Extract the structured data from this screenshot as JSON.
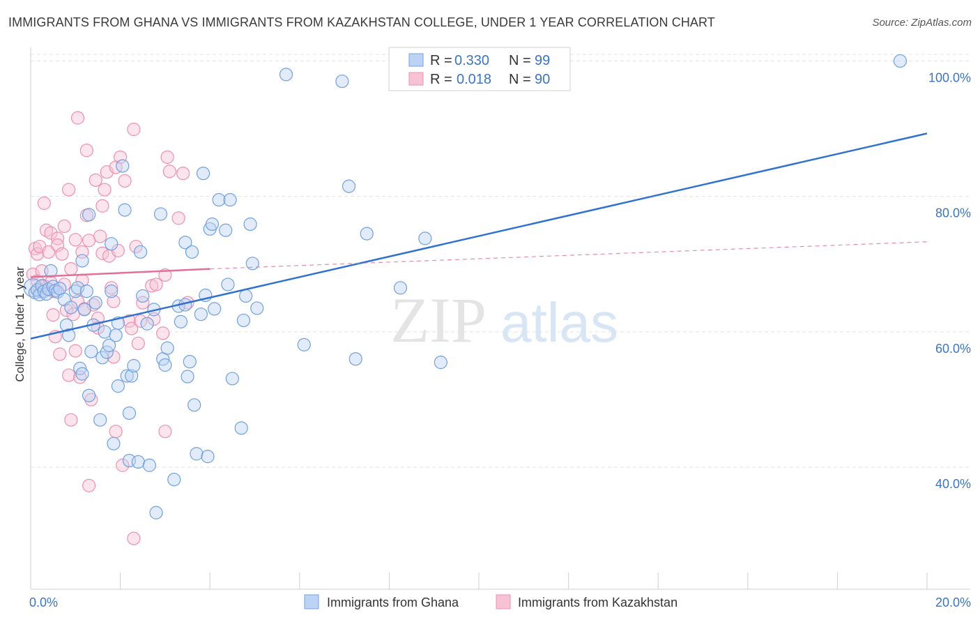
{
  "header": {
    "title": "IMMIGRANTS FROM GHANA VS IMMIGRANTS FROM KAZAKHSTAN COLLEGE, UNDER 1 YEAR CORRELATION CHART",
    "source": "Source: ZipAtlas.com"
  },
  "watermark": {
    "part1": "ZIP",
    "part2": "atlas"
  },
  "colors": {
    "ghana": "#6fa0e0",
    "ghana_fill": "#bcd3f3",
    "ghana_line": "#2f72d0",
    "kazakhstan": "#ee8fb0",
    "kazakhstan_fill": "#f7c3d4",
    "kazakhstan_line": "#e0709a",
    "tick_text": "#3a74c9",
    "grid": "#dde3ec"
  },
  "legend": {
    "ghana": {
      "r_label": "R = ",
      "r_value": "0.330",
      "n_label": "N = ",
      "n_value": "99"
    },
    "kazakhstan": {
      "r_label": "R = ",
      "r_value": "0.018",
      "n_label": "N = ",
      "n_value": "90"
    }
  },
  "chart_data": {
    "type": "scatter",
    "title": "IMMIGRANTS FROM GHANA VS IMMIGRANTS FROM KAZAKHSTAN COLLEGE, UNDER 1 YEAR CORRELATION CHART",
    "xlabel": "",
    "ylabel": "College, Under 1 year",
    "xlim": [
      0,
      20
    ],
    "ylim": [
      22,
      102
    ],
    "x_tick_labels": [
      "0.0%",
      "20.0%"
    ],
    "y_ticks": [
      40,
      60,
      80,
      100
    ],
    "y_tick_labels": [
      "40.0%",
      "60.0%",
      "80.0%",
      "100.0%"
    ],
    "grid": true,
    "legend_position": "top-center",
    "series": [
      {
        "name": "Immigrants from Ghana",
        "r": 0.33,
        "n": 99,
        "trend": {
          "x": [
            0,
            20
          ],
          "y": [
            59.0,
            89.3
          ],
          "style": "solid"
        },
        "points": [
          [
            0.05,
            66.5
          ],
          [
            0.1,
            65.8
          ],
          [
            0.15,
            66.2
          ],
          [
            0.2,
            65.5
          ],
          [
            0.25,
            66.8
          ],
          [
            0.3,
            66.0
          ],
          [
            0.35,
            65.6
          ],
          [
            0.4,
            66.3
          ],
          [
            0.45,
            69.0
          ],
          [
            0.5,
            66.7
          ],
          [
            0.55,
            66.1
          ],
          [
            0.6,
            65.9
          ],
          [
            0.65,
            66.4
          ],
          [
            0.75,
            64.8
          ],
          [
            0.8,
            61.0
          ],
          [
            0.85,
            59.5
          ],
          [
            1.0,
            66.0
          ],
          [
            1.05,
            66.5
          ],
          [
            0.9,
            63.6
          ],
          [
            1.1,
            54.6
          ],
          [
            1.15,
            53.8
          ],
          [
            1.15,
            70.5
          ],
          [
            1.2,
            63.3
          ],
          [
            1.25,
            66.0
          ],
          [
            1.3,
            77.3
          ],
          [
            1.3,
            50.6
          ],
          [
            1.35,
            57.1
          ],
          [
            1.4,
            61.0
          ],
          [
            1.45,
            64.3
          ],
          [
            1.55,
            47.0
          ],
          [
            1.6,
            56.2
          ],
          [
            1.65,
            60.0
          ],
          [
            1.7,
            57.0
          ],
          [
            1.75,
            58.0
          ],
          [
            1.8,
            66.0
          ],
          [
            1.8,
            73.0
          ],
          [
            1.85,
            43.5
          ],
          [
            1.9,
            59.5
          ],
          [
            1.95,
            61.3
          ],
          [
            1.95,
            52.0
          ],
          [
            2.05,
            84.5
          ],
          [
            2.1,
            78.0
          ],
          [
            2.15,
            53.5
          ],
          [
            2.2,
            48.0
          ],
          [
            2.2,
            41.0
          ],
          [
            2.25,
            53.5
          ],
          [
            2.3,
            55.0
          ],
          [
            2.4,
            40.8
          ],
          [
            2.45,
            71.8
          ],
          [
            2.5,
            65.3
          ],
          [
            2.6,
            61.2
          ],
          [
            2.65,
            40.3
          ],
          [
            2.75,
            63.3
          ],
          [
            2.8,
            33.3
          ],
          [
            2.9,
            77.4
          ],
          [
            2.95,
            56.0
          ],
          [
            3.0,
            55.1
          ],
          [
            3.05,
            57.6
          ],
          [
            3.2,
            38.2
          ],
          [
            3.3,
            63.8
          ],
          [
            3.35,
            61.5
          ],
          [
            3.45,
            64.0
          ],
          [
            3.45,
            73.2
          ],
          [
            3.5,
            53.4
          ],
          [
            3.55,
            55.6
          ],
          [
            3.6,
            71.8
          ],
          [
            3.65,
            49.2
          ],
          [
            3.7,
            42.0
          ],
          [
            3.8,
            62.6
          ],
          [
            3.85,
            83.4
          ],
          [
            3.9,
            65.4
          ],
          [
            3.95,
            41.6
          ],
          [
            4.0,
            75.2
          ],
          [
            4.05,
            75.9
          ],
          [
            4.1,
            63.4
          ],
          [
            4.2,
            79.5
          ],
          [
            4.35,
            75.0
          ],
          [
            4.4,
            67.0
          ],
          [
            4.45,
            79.5
          ],
          [
            4.5,
            53.1
          ],
          [
            4.7,
            45.8
          ],
          [
            4.75,
            61.7
          ],
          [
            4.8,
            65.3
          ],
          [
            4.9,
            75.9
          ],
          [
            4.95,
            70.1
          ],
          [
            5.05,
            63.5
          ],
          [
            5.7,
            98.0
          ],
          [
            6.1,
            58.1
          ],
          [
            6.95,
            97.0
          ],
          [
            7.1,
            81.5
          ],
          [
            7.25,
            56.0
          ],
          [
            7.5,
            74.5
          ],
          [
            8.25,
            66.5
          ],
          [
            8.8,
            73.8
          ],
          [
            9.15,
            55.5
          ],
          [
            19.4,
            100.0
          ]
        ]
      },
      {
        "name": "Immigrants from Kazakhstan",
        "r": 0.018,
        "n": 90,
        "trend": {
          "x": [
            0,
            4.0
          ],
          "y": [
            68.1,
            69.3
          ],
          "style": "solid",
          "extension": {
            "x": [
              4.0,
              20
            ],
            "y": [
              69.3,
              73.3
            ],
            "style": "dashed"
          }
        },
        "points": [
          [
            0.05,
            68.5
          ],
          [
            0.1,
            72.3
          ],
          [
            0.15,
            71.5
          ],
          [
            0.15,
            67.5
          ],
          [
            0.2,
            66.0
          ],
          [
            0.2,
            72.6
          ],
          [
            0.25,
            69.0
          ],
          [
            0.3,
            79.0
          ],
          [
            0.3,
            66.8
          ],
          [
            0.35,
            75.0
          ],
          [
            0.4,
            71.8
          ],
          [
            0.45,
            67.3
          ],
          [
            0.45,
            74.6
          ],
          [
            0.5,
            62.5
          ],
          [
            0.55,
            59.3
          ],
          [
            0.5,
            66.0
          ],
          [
            0.6,
            73.8
          ],
          [
            0.6,
            72.8
          ],
          [
            0.65,
            56.7
          ],
          [
            0.7,
            71.5
          ],
          [
            0.75,
            75.6
          ],
          [
            0.75,
            67.0
          ],
          [
            0.8,
            63.2
          ],
          [
            0.85,
            53.6
          ],
          [
            0.85,
            81.0
          ],
          [
            0.9,
            47.0
          ],
          [
            0.9,
            69.3
          ],
          [
            0.95,
            62.6
          ],
          [
            1.0,
            57.2
          ],
          [
            1.0,
            73.6
          ],
          [
            1.05,
            91.6
          ],
          [
            1.05,
            64.5
          ],
          [
            1.1,
            53.3
          ],
          [
            1.15,
            67.6
          ],
          [
            1.15,
            71.8
          ],
          [
            1.2,
            63.4
          ],
          [
            1.25,
            86.8
          ],
          [
            1.25,
            77.2
          ],
          [
            1.3,
            37.3
          ],
          [
            1.3,
            73.5
          ],
          [
            1.35,
            50.0
          ],
          [
            1.4,
            64.0
          ],
          [
            1.45,
            82.4
          ],
          [
            1.5,
            62.0
          ],
          [
            1.5,
            60.6
          ],
          [
            1.55,
            74.1
          ],
          [
            1.6,
            71.6
          ],
          [
            1.6,
            78.6
          ],
          [
            1.65,
            81.0
          ],
          [
            1.7,
            83.6
          ],
          [
            1.75,
            71.2
          ],
          [
            1.8,
            66.5
          ],
          [
            1.85,
            64.5
          ],
          [
            1.85,
            56.3
          ],
          [
            1.9,
            84.3
          ],
          [
            1.9,
            45.3
          ],
          [
            1.95,
            72.0
          ],
          [
            2.0,
            85.8
          ],
          [
            2.05,
            40.3
          ],
          [
            2.1,
            82.3
          ],
          [
            2.2,
            61.6
          ],
          [
            2.25,
            60.5
          ],
          [
            2.3,
            89.9
          ],
          [
            2.3,
            29.5
          ],
          [
            2.35,
            72.6
          ],
          [
            2.4,
            58.3
          ],
          [
            2.45,
            61.6
          ],
          [
            2.5,
            64.3
          ],
          [
            2.7,
            66.8
          ],
          [
            2.75,
            61.9
          ],
          [
            2.8,
            67.0
          ],
          [
            2.95,
            59.8
          ],
          [
            3.0,
            68.4
          ],
          [
            3.0,
            45.3
          ],
          [
            3.05,
            85.8
          ],
          [
            3.1,
            83.7
          ],
          [
            3.3,
            76.8
          ],
          [
            3.4,
            83.4
          ],
          [
            3.5,
            64.3
          ]
        ]
      }
    ]
  },
  "bottom_legend": {
    "ghana_label": "Immigrants from Ghana",
    "kazakhstan_label": "Immigrants from Kazakhstan"
  }
}
